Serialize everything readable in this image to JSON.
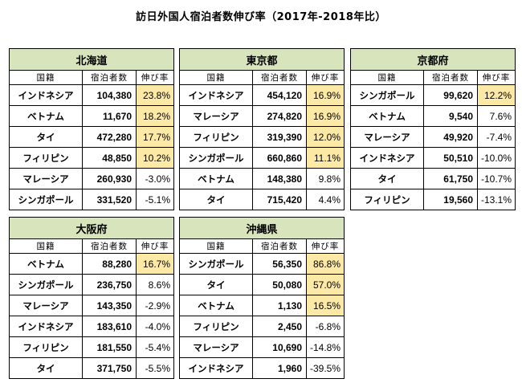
{
  "title": "訪日外国人宿泊者数伸び率（2017年-2018年比）",
  "header": {
    "col1": "国籍",
    "col2": "宿泊者数",
    "col3": "伸び率"
  },
  "highlight_color": "#fde9a6",
  "region_header_color": "#d8e4bc",
  "regions": [
    {
      "name": "北海道",
      "rows": [
        {
          "country": "インドネシア",
          "guests": "104,380",
          "rate": "23.8%",
          "hl": true
        },
        {
          "country": "ベトナム",
          "guests": "11,670",
          "rate": "18.2%",
          "hl": true
        },
        {
          "country": "タイ",
          "guests": "472,280",
          "rate": "17.7%",
          "hl": true
        },
        {
          "country": "フィリピン",
          "guests": "48,850",
          "rate": "10.2%",
          "hl": true
        },
        {
          "country": "マレーシア",
          "guests": "260,930",
          "rate": "-3.0%",
          "hl": false
        },
        {
          "country": "シンガポール",
          "guests": "331,520",
          "rate": "-5.1%",
          "hl": false
        }
      ]
    },
    {
      "name": "東京都",
      "rows": [
        {
          "country": "インドネシア",
          "guests": "454,120",
          "rate": "16.9%",
          "hl": true
        },
        {
          "country": "マレーシア",
          "guests": "274,820",
          "rate": "16.9%",
          "hl": true
        },
        {
          "country": "フィリピン",
          "guests": "319,390",
          "rate": "12.0%",
          "hl": true
        },
        {
          "country": "シンガポール",
          "guests": "660,860",
          "rate": "11.1%",
          "hl": true
        },
        {
          "country": "ベトナム",
          "guests": "148,380",
          "rate": "9.8%",
          "hl": false
        },
        {
          "country": "タイ",
          "guests": "715,420",
          "rate": "4.4%",
          "hl": false
        }
      ]
    },
    {
      "name": "京都府",
      "rows": [
        {
          "country": "シンガポール",
          "guests": "99,620",
          "rate": "12.2%",
          "hl": true
        },
        {
          "country": "ベトナム",
          "guests": "9,540",
          "rate": "7.6%",
          "hl": false
        },
        {
          "country": "マレーシア",
          "guests": "49,920",
          "rate": "-7.4%",
          "hl": false
        },
        {
          "country": "インドネシア",
          "guests": "50,510",
          "rate": "-10.0%",
          "hl": false
        },
        {
          "country": "タイ",
          "guests": "61,750",
          "rate": "-10.7%",
          "hl": false
        },
        {
          "country": "フィリピン",
          "guests": "19,560",
          "rate": "-13.1%",
          "hl": false
        }
      ]
    },
    {
      "name": "大阪府",
      "rows": [
        {
          "country": "ベトナム",
          "guests": "88,280",
          "rate": "16.7%",
          "hl": true
        },
        {
          "country": "シンガポール",
          "guests": "236,750",
          "rate": "8.6%",
          "hl": false
        },
        {
          "country": "マレーシア",
          "guests": "143,350",
          "rate": "-2.9%",
          "hl": false
        },
        {
          "country": "インドネシア",
          "guests": "183,610",
          "rate": "-4.0%",
          "hl": false
        },
        {
          "country": "フィリピン",
          "guests": "181,550",
          "rate": "-5.4%",
          "hl": false
        },
        {
          "country": "タイ",
          "guests": "371,750",
          "rate": "-5.5%",
          "hl": false
        }
      ]
    },
    {
      "name": "沖縄県",
      "rows": [
        {
          "country": "シンガポール",
          "guests": "56,350",
          "rate": "86.8%",
          "hl": true
        },
        {
          "country": "タイ",
          "guests": "50,080",
          "rate": "57.0%",
          "hl": true
        },
        {
          "country": "ベトナム",
          "guests": "1,130",
          "rate": "16.5%",
          "hl": true
        },
        {
          "country": "フィリピン",
          "guests": "2,450",
          "rate": "-6.8%",
          "hl": false
        },
        {
          "country": "マレーシア",
          "guests": "10,690",
          "rate": "-14.8%",
          "hl": false
        },
        {
          "country": "インドネシア",
          "guests": "1,960",
          "rate": "-39.5%",
          "hl": false
        }
      ]
    }
  ]
}
